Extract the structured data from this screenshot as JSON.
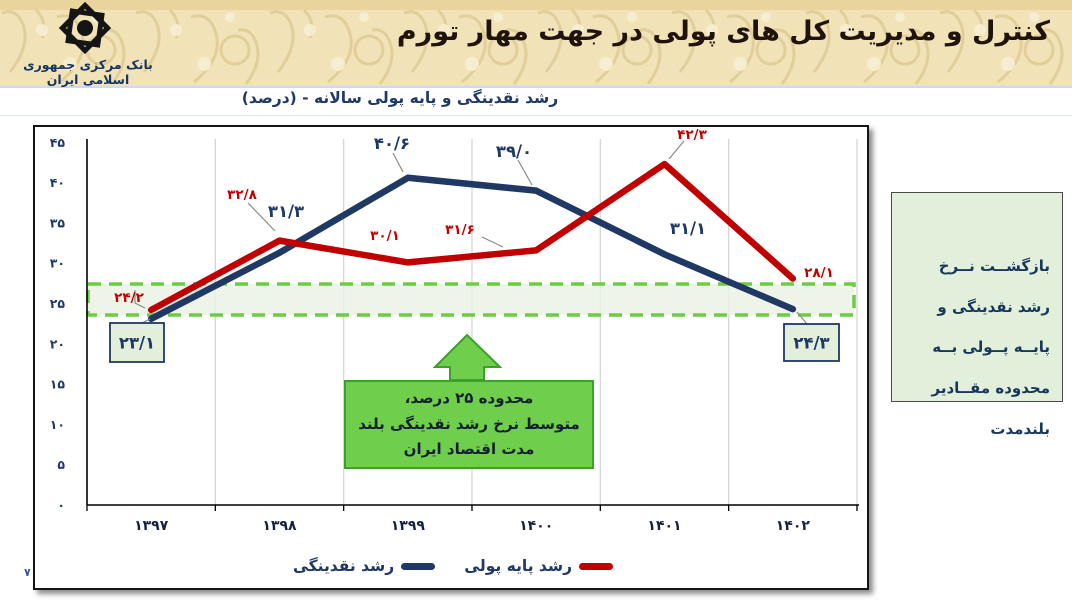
{
  "header": {
    "bank_name": "بانک مرکزی جمهوری اسلامی ایران",
    "title": "کنترل و مدیریت کل های پولی در جهت مهار تورم"
  },
  "page_number": "۷",
  "chart_data": {
    "type": "line",
    "title": "رشد نقدینگی و پایه پولی سالانه - (درصد)",
    "categories": [
      "۱۳۹۷",
      "۱۳۹۸",
      "۱۳۹۹",
      "۱۴۰۰",
      "۱۴۰۱",
      "۱۴۰۲"
    ],
    "series": [
      {
        "name": "رشد نقدینگی",
        "color": "#1f3864",
        "values": [
          23.1,
          31.3,
          40.6,
          39.0,
          31.1,
          24.3
        ],
        "labels": [
          "۲۳/۱",
          "۳۱/۳",
          "۴۰/۶",
          "۳۹/۰",
          "۳۱/۱",
          "۲۴/۳"
        ]
      },
      {
        "name": "رشد پایه پولی",
        "color": "#c00000",
        "values": [
          24.2,
          32.8,
          30.1,
          31.6,
          42.3,
          28.1
        ],
        "labels": [
          "۲۴/۲",
          "۳۲/۸",
          "۳۰/۱",
          "۳۱/۶",
          "۴۲/۳",
          "۲۸/۱"
        ]
      }
    ],
    "ylim": [
      0,
      45
    ],
    "ytick_step": 5,
    "ytick_labels": [
      "۰",
      "۵",
      "۱۰",
      "۱۵",
      "۲۰",
      "۲۵",
      "۳۰",
      "۳۵",
      "۴۰",
      "۴۵"
    ],
    "grid": "vertical",
    "legend_position": "bottom",
    "highlight_band": {
      "center_value": 25,
      "approx_range": [
        23.5,
        27.5
      ],
      "style": "green-dashed-rectangle"
    }
  },
  "annotations": {
    "band_callout": "محدوده ۲۵ درصد،\nمتوسط نرخ رشد نقدینگی بلند\nمدت اقتصاد ایران",
    "side_note": "بازگشــت نــرخ\nرشد نقدینگی و\nپایــه پــولی بــه\nمحدوده مقــادیر\nبلندمدت",
    "colors": {
      "callout_fill": "#70ce4d",
      "callout_border": "#3da02c",
      "side_note_fill": "#e2efda",
      "band_border": "#6ecb44",
      "band_fill": "#eaf3e2",
      "label_box_fill": "#e2efda",
      "label_box_border": "#1f3864",
      "gridline": "#d6d6d6",
      "axis": "#000000",
      "navy_text": "#1f3864",
      "red_text": "#c00000"
    }
  }
}
